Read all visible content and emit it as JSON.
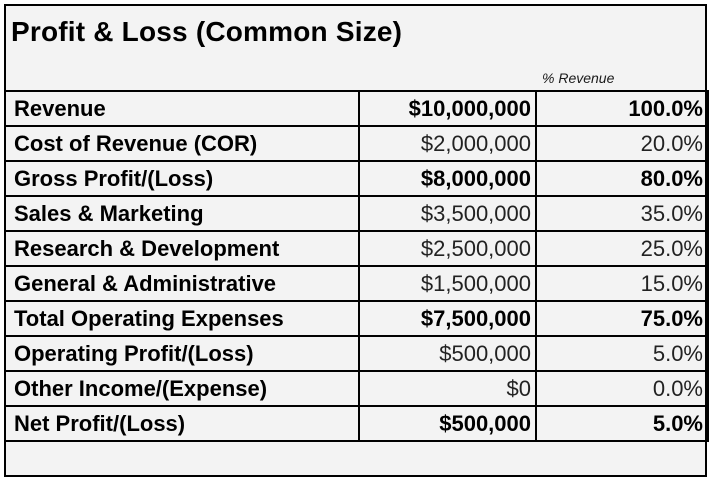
{
  "title": "Profit & Loss (Common Size)",
  "column_header": "% Revenue",
  "rows": [
    {
      "label": "Revenue",
      "amount": "$10,000,000",
      "pct": "100.0%",
      "bold": true
    },
    {
      "label": "Cost of Revenue (COR)",
      "amount": "$2,000,000",
      "pct": "20.0%",
      "bold": false
    },
    {
      "label": "Gross Profit/(Loss)",
      "amount": "$8,000,000",
      "pct": "80.0%",
      "bold": true
    },
    {
      "label": "Sales & Marketing",
      "amount": "$3,500,000",
      "pct": "35.0%",
      "bold": false
    },
    {
      "label": "Research & Development",
      "amount": "$2,500,000",
      "pct": "25.0%",
      "bold": false
    },
    {
      "label": "General & Administrative",
      "amount": "$1,500,000",
      "pct": "15.0%",
      "bold": false
    },
    {
      "label": "Total Operating Expenses",
      "amount": "$7,500,000",
      "pct": "75.0%",
      "bold": true
    },
    {
      "label": "Operating Profit/(Loss)",
      "amount": "$500,000",
      "pct": "5.0%",
      "bold": false
    },
    {
      "label": "Other Income/(Expense)",
      "amount": "$0",
      "pct": "0.0%",
      "bold": false
    },
    {
      "label": "Net Profit/(Loss)",
      "amount": "$500,000",
      "pct": "5.0%",
      "bold": true
    }
  ]
}
